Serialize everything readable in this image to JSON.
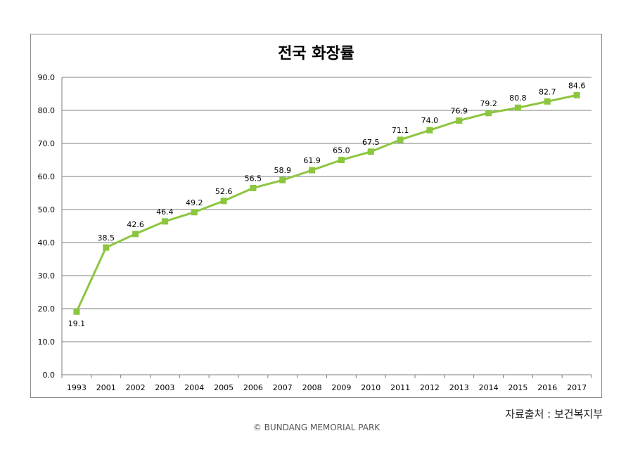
{
  "chart_data": {
    "type": "line",
    "title": "전국 화장률",
    "categories": [
      "1993",
      "2001",
      "2002",
      "2003",
      "2004",
      "2005",
      "2006",
      "2007",
      "2008",
      "2009",
      "2010",
      "2011",
      "2012",
      "2013",
      "2014",
      "2015",
      "2016",
      "2017"
    ],
    "series": [
      {
        "values": [
          19.1,
          38.5,
          42.6,
          46.4,
          49.2,
          52.6,
          56.5,
          58.9,
          61.9,
          65.0,
          67.5,
          71.1,
          74.0,
          76.9,
          79.2,
          80.8,
          82.7,
          84.6
        ],
        "labels": [
          "19.1",
          "38.5",
          "42.6",
          "46.4",
          "49.2",
          "52.6",
          "56.5",
          "58.9",
          "61.9",
          "65.0",
          "67.5",
          "71.1",
          "74.0",
          "76.9",
          "79.2",
          "80.8",
          "82.7",
          "84.6"
        ],
        "color": "#8cc63f"
      }
    ],
    "ylim": [
      0,
      90
    ],
    "yticks": [
      "0.0",
      "10.0",
      "20.0",
      "30.0",
      "40.0",
      "50.0",
      "60.0",
      "70.0",
      "80.0",
      "90.0"
    ],
    "grid": true,
    "xlabel": "",
    "ylabel": ""
  },
  "footer": {
    "source": "자료출처 : 보건복지부",
    "copyright": "© BUNDANG MEMORIAL PARK"
  },
  "colors": {
    "line": "#8cc63f",
    "grid": "#7f7f7f",
    "axis": "#7f7f7f"
  }
}
